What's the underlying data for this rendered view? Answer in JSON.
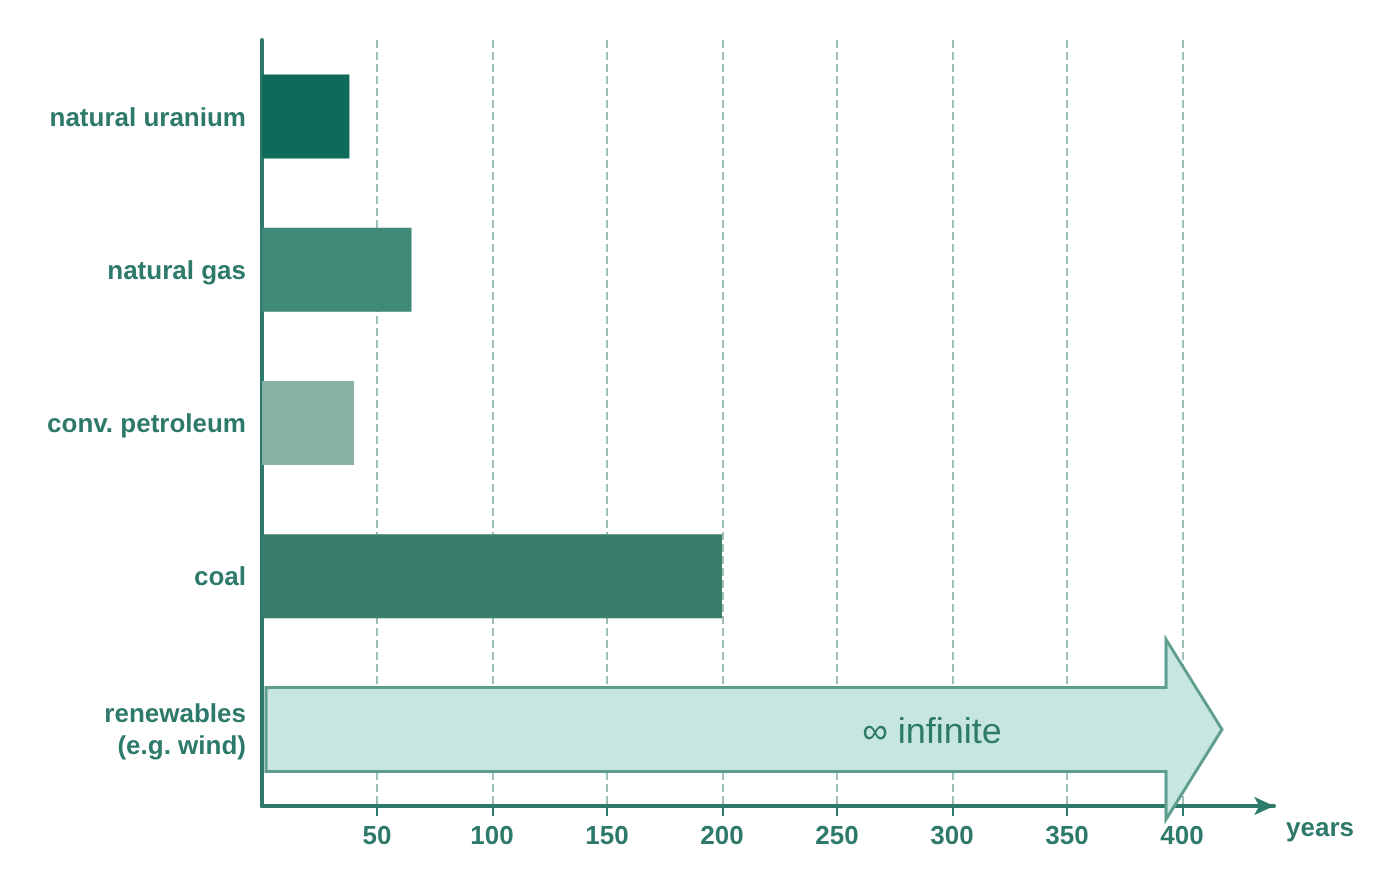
{
  "chart_data": {
    "type": "bar",
    "orientation": "horizontal",
    "categories": [
      "natural uranium",
      "natural gas",
      "conv. petroleum",
      "coal",
      "renewables\n(e.g. wind)"
    ],
    "values": [
      38,
      65,
      40,
      200,
      null
    ],
    "colors": [
      "#0e6b5a",
      "#3f8977",
      "#89b1a6",
      "#3b7d6d",
      "#c6e6df"
    ],
    "xlim": [
      0,
      440
    ],
    "xticks": [
      50,
      100,
      150,
      200,
      250,
      300,
      350,
      400
    ],
    "xlabel": "years",
    "grid": "x",
    "annotations": [
      "∞ infinite"
    ]
  }
}
